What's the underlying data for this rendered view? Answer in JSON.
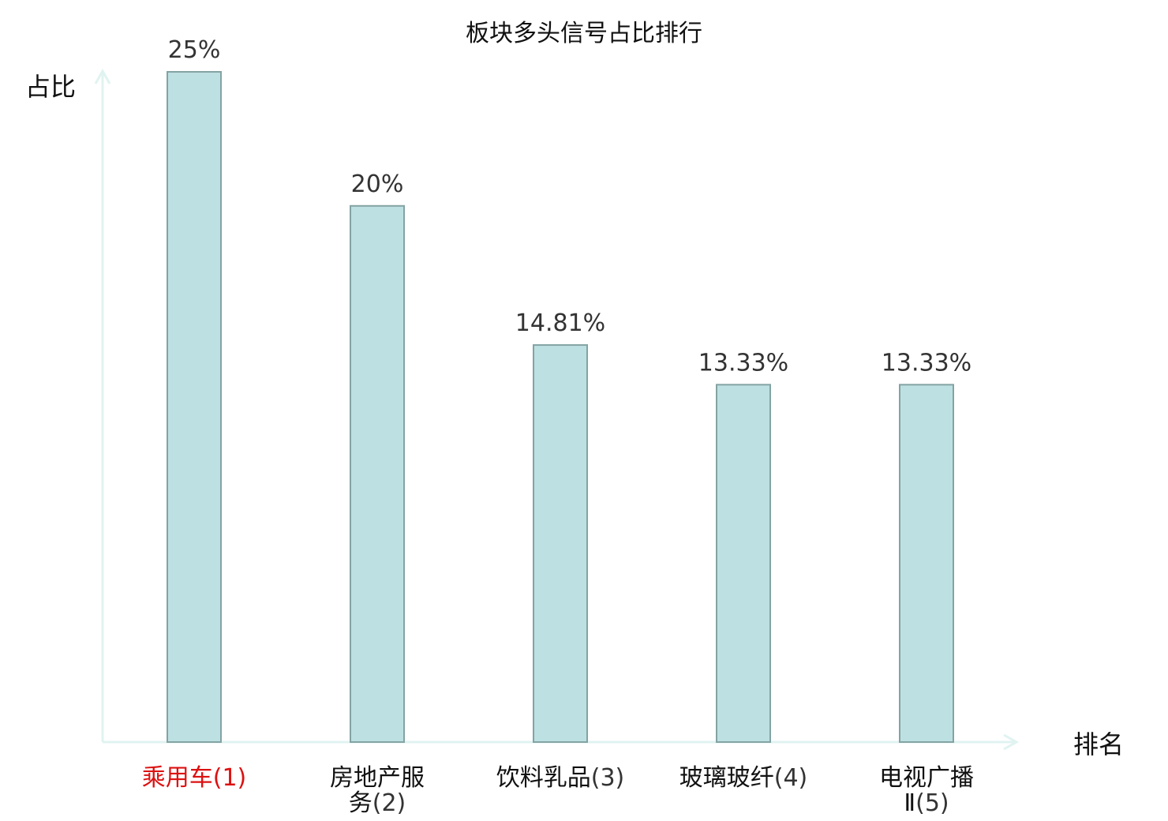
{
  "chart_data": {
    "type": "bar",
    "title": "板块多头信号占比排行",
    "xlabel": "排名",
    "ylabel": "占比",
    "ylim": [
      0,
      25
    ],
    "grid": false,
    "categories": [
      {
        "name_lines": [
          "乘用车"
        ],
        "rank_line_prefix": "",
        "rank": "(1)",
        "highlight": true
      },
      {
        "name_lines": [
          "房地产服"
        ],
        "rank_line_prefix": "务",
        "rank": "(2)",
        "highlight": false
      },
      {
        "name_lines": [
          "饮料乳品"
        ],
        "rank_line_prefix": "",
        "rank": "(3)",
        "highlight": false
      },
      {
        "name_lines": [
          "玻璃玻纤"
        ],
        "rank_line_prefix": "",
        "rank": "(4)",
        "highlight": false
      },
      {
        "name_lines": [
          "电视广播"
        ],
        "rank_line_prefix": "Ⅱ",
        "rank": "(5)",
        "highlight": false
      }
    ],
    "values": [
      25,
      20,
      14.81,
      13.33,
      13.33
    ],
    "value_labels": [
      "25%",
      "20%",
      "14.81%",
      "13.33%",
      "13.33%"
    ],
    "colors": {
      "bar_fill": "#bde0e2",
      "bar_stroke": "#84a3a3",
      "axis": "#e0f3f1",
      "highlight_text": "#dd1111"
    }
  }
}
